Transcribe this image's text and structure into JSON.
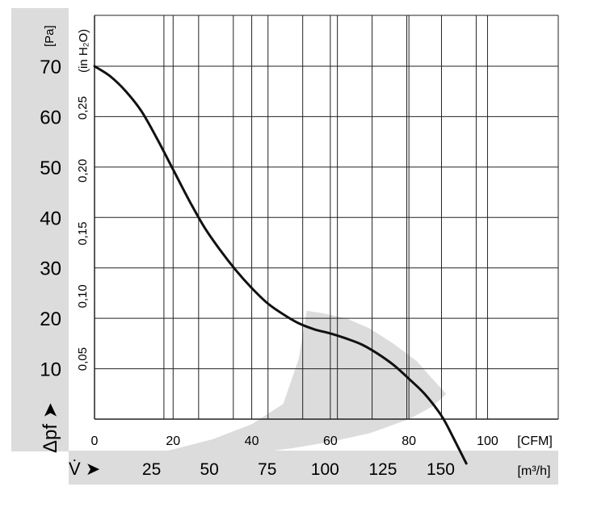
{
  "chart_data": {
    "type": "line",
    "x_axis_primary": {
      "unit": "[CFM]",
      "ticks": [
        0,
        20,
        40,
        60,
        80,
        100
      ],
      "range": [
        0,
        118
      ]
    },
    "x_axis_secondary": {
      "symbol": "V̇ ➤",
      "unit": "[m³/h]",
      "ticks": [
        25,
        50,
        75,
        100,
        125,
        150
      ]
    },
    "y_axis_primary": {
      "symbol": "Δpf ➤",
      "unit": "[Pa]",
      "ticks": [
        10,
        20,
        30,
        40,
        50,
        60,
        70
      ],
      "range": [
        0,
        70
      ]
    },
    "y_axis_secondary": {
      "unit": "(in H₂O)",
      "ticks": [
        "0,05",
        "0,10",
        "0,15",
        "0,20",
        "0,25"
      ],
      "tick_values": [
        0.05,
        0.1,
        0.15,
        0.2,
        0.25
      ]
    },
    "grid": true,
    "series": [
      {
        "color": "#111111",
        "points": [
          [
            0,
            70
          ],
          [
            4,
            68
          ],
          [
            8,
            65
          ],
          [
            12,
            61
          ],
          [
            16,
            55.5
          ],
          [
            20,
            49.5
          ],
          [
            24,
            43.5
          ],
          [
            28,
            38
          ],
          [
            32,
            33.5
          ],
          [
            36,
            29.5
          ],
          [
            40,
            26
          ],
          [
            44,
            23
          ],
          [
            48,
            20.8
          ],
          [
            52,
            19
          ],
          [
            56,
            17.8
          ],
          [
            60,
            17
          ],
          [
            64,
            16
          ],
          [
            68,
            14.8
          ],
          [
            72,
            13
          ],
          [
            76,
            10.8
          ],
          [
            80,
            8
          ],
          [
            84,
            5
          ],
          [
            88,
            1
          ],
          [
            90,
            -1.7
          ],
          [
            94.6,
            -8.8
          ]
        ]
      }
    ],
    "shaded_region": {
      "color": "#dcdcdc",
      "upper_edge": [
        [
          0,
          -8.8
        ],
        [
          10,
          -7.5
        ],
        [
          20,
          -6
        ],
        [
          30,
          -4
        ],
        [
          40,
          -1
        ],
        [
          48,
          3
        ],
        [
          52,
          12
        ],
        [
          54,
          21.5
        ],
        [
          58,
          21
        ],
        [
          64,
          20
        ],
        [
          70,
          18
        ],
        [
          76,
          15
        ],
        [
          82,
          11.5
        ],
        [
          86,
          8
        ],
        [
          89.5,
          5
        ]
      ],
      "lower_edge": [
        [
          89.5,
          5
        ],
        [
          86,
          2.5
        ],
        [
          80,
          0
        ],
        [
          70,
          -2.8
        ],
        [
          60,
          -4.5
        ],
        [
          50,
          -5.8
        ],
        [
          40,
          -6.8
        ],
        [
          30,
          -7.6
        ],
        [
          20,
          -8.1
        ],
        [
          10,
          -8.5
        ],
        [
          0,
          -8.8
        ]
      ]
    }
  }
}
